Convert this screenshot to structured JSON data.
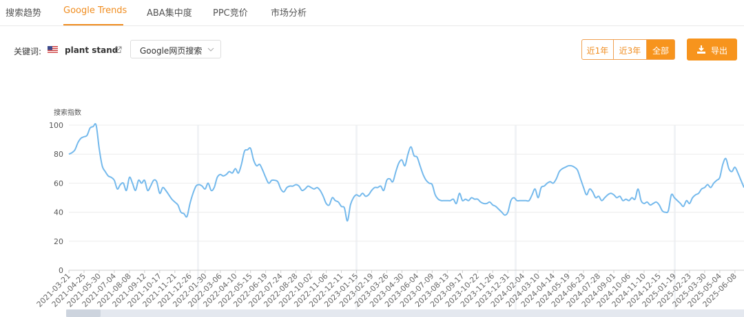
{
  "tabs": [
    "搜索趋势",
    "Google Trends",
    "ABA集中度",
    "PPC竞价",
    "市场分析"
  ],
  "keyword_label": "关键词:",
  "keyword": "plant stand",
  "search_source": "Google网页搜索",
  "range_buttons": [
    "近1年",
    "近3年",
    "全部"
  ],
  "export_button": "导出",
  "chart_data": {
    "type": "line",
    "y_label": "搜索指数",
    "ylim": [
      0,
      100
    ],
    "yticks": [
      0,
      20,
      40,
      60,
      80,
      100
    ],
    "grid": true,
    "color": "#74b9ec",
    "categories": [
      "2021-03-21",
      null,
      null,
      null,
      null,
      "2021-04-25",
      null,
      null,
      null,
      null,
      "2021-05-30",
      null,
      null,
      null,
      null,
      "2021-07-04",
      null,
      null,
      null,
      null,
      "2021-08-08",
      null,
      null,
      null,
      null,
      "2021-09-12",
      null,
      null,
      null,
      null,
      "2021-10-17",
      null,
      null,
      null,
      null,
      "2021-11-21",
      null,
      null,
      null,
      null,
      "2021-12-26",
      null,
      null,
      null,
      null,
      "2022-01-30",
      null,
      null,
      null,
      null,
      "2022-03-06",
      null,
      null,
      null,
      null,
      "2022-04-10",
      null,
      null,
      null,
      null,
      "2022-05-15",
      null,
      null,
      null,
      null,
      "2022-06-19",
      null,
      null,
      null,
      null,
      "2022-07-24",
      null,
      null,
      null,
      null,
      "2022-08-28",
      null,
      null,
      null,
      null,
      "2022-10-02",
      null,
      null,
      null,
      null,
      "2022-11-06",
      null,
      null,
      null,
      null,
      "2022-12-11",
      null,
      null,
      null,
      null,
      "2023-01-15",
      null,
      null,
      null,
      null,
      "2023-02-19",
      null,
      null,
      null,
      null,
      "2023-03-26",
      null,
      null,
      null,
      null,
      "2023-04-30",
      null,
      null,
      null,
      null,
      "2023-06-04",
      null,
      null,
      null,
      null,
      "2023-07-09",
      null,
      null,
      null,
      null,
      "2023-08-13",
      null,
      null,
      null,
      null,
      "2023-09-17",
      null,
      null,
      null,
      null,
      "2023-10-22",
      null,
      null,
      null,
      null,
      "2023-11-26",
      null,
      null,
      null,
      null,
      "2023-12-31",
      null,
      null,
      null,
      null,
      "2024-02-04",
      null,
      null,
      null,
      null,
      "2024-03-10",
      null,
      null,
      null,
      null,
      "2024-04-14",
      null,
      null,
      null,
      null,
      "2024-05-19",
      null,
      null,
      null,
      null,
      "2024-06-23",
      null,
      null,
      null,
      null,
      "2024-07-28",
      null,
      null,
      null,
      null,
      "2024-09-01",
      null,
      null,
      null,
      null,
      "2024-10-06",
      null,
      null,
      null,
      null,
      "2024-11-10",
      null,
      null,
      null,
      null,
      "2024-12-15",
      null,
      null,
      null,
      null,
      "2025-01-19",
      null,
      null,
      null,
      null,
      "2025-02-23",
      null,
      null,
      null,
      null,
      "2025-03-30",
      null,
      null,
      null,
      null,
      "2025-05-04",
      null,
      null,
      null,
      null,
      "2025-06-08",
      null,
      null,
      null
    ],
    "values": [
      80,
      81,
      83,
      88,
      91,
      92,
      93,
      98,
      99,
      100,
      84,
      72,
      68,
      65,
      64,
      62,
      56,
      59,
      60,
      55,
      64,
      60,
      55,
      62,
      60,
      62,
      55,
      58,
      62,
      61,
      53,
      57,
      55,
      52,
      49,
      47,
      45,
      40,
      39,
      37,
      46,
      53,
      58,
      59,
      58,
      56,
      60,
      55,
      57,
      64,
      66,
      65,
      66,
      68,
      67,
      70,
      67,
      73,
      82,
      83,
      84,
      76,
      72,
      73,
      69,
      64,
      60,
      62,
      62,
      61,
      56,
      54,
      57,
      58,
      58,
      59,
      58,
      55,
      56,
      58,
      57,
      56,
      57,
      55,
      51,
      46,
      45,
      50,
      48,
      47,
      44,
      43,
      34,
      45,
      50,
      52,
      51,
      53,
      51,
      52,
      55,
      57,
      57,
      58,
      55,
      62,
      63,
      61,
      68,
      74,
      76,
      72,
      80,
      85,
      79,
      78,
      72,
      66,
      62,
      60,
      59,
      52,
      49,
      48,
      48,
      48,
      48,
      49,
      46,
      53,
      48,
      49,
      48,
      50,
      49,
      49,
      47,
      46,
      46,
      47,
      45,
      44,
      42,
      40,
      38,
      40,
      48,
      50,
      48,
      48,
      48,
      48,
      48,
      52,
      56,
      50,
      57,
      58,
      60,
      61,
      60,
      63,
      68,
      70,
      71,
      72,
      72,
      71,
      69,
      63,
      57,
      52,
      56,
      54,
      50,
      51,
      48,
      50,
      52,
      53,
      52,
      50,
      51,
      48,
      49,
      48,
      50,
      49,
      56,
      48,
      46,
      47,
      45,
      46,
      47,
      45,
      41,
      40,
      41,
      52,
      50,
      48,
      46,
      44,
      48,
      46,
      50,
      52,
      53,
      56,
      57,
      59,
      57,
      60,
      62,
      64,
      73,
      77,
      70,
      68,
      71,
      67,
      62,
      57
    ]
  }
}
